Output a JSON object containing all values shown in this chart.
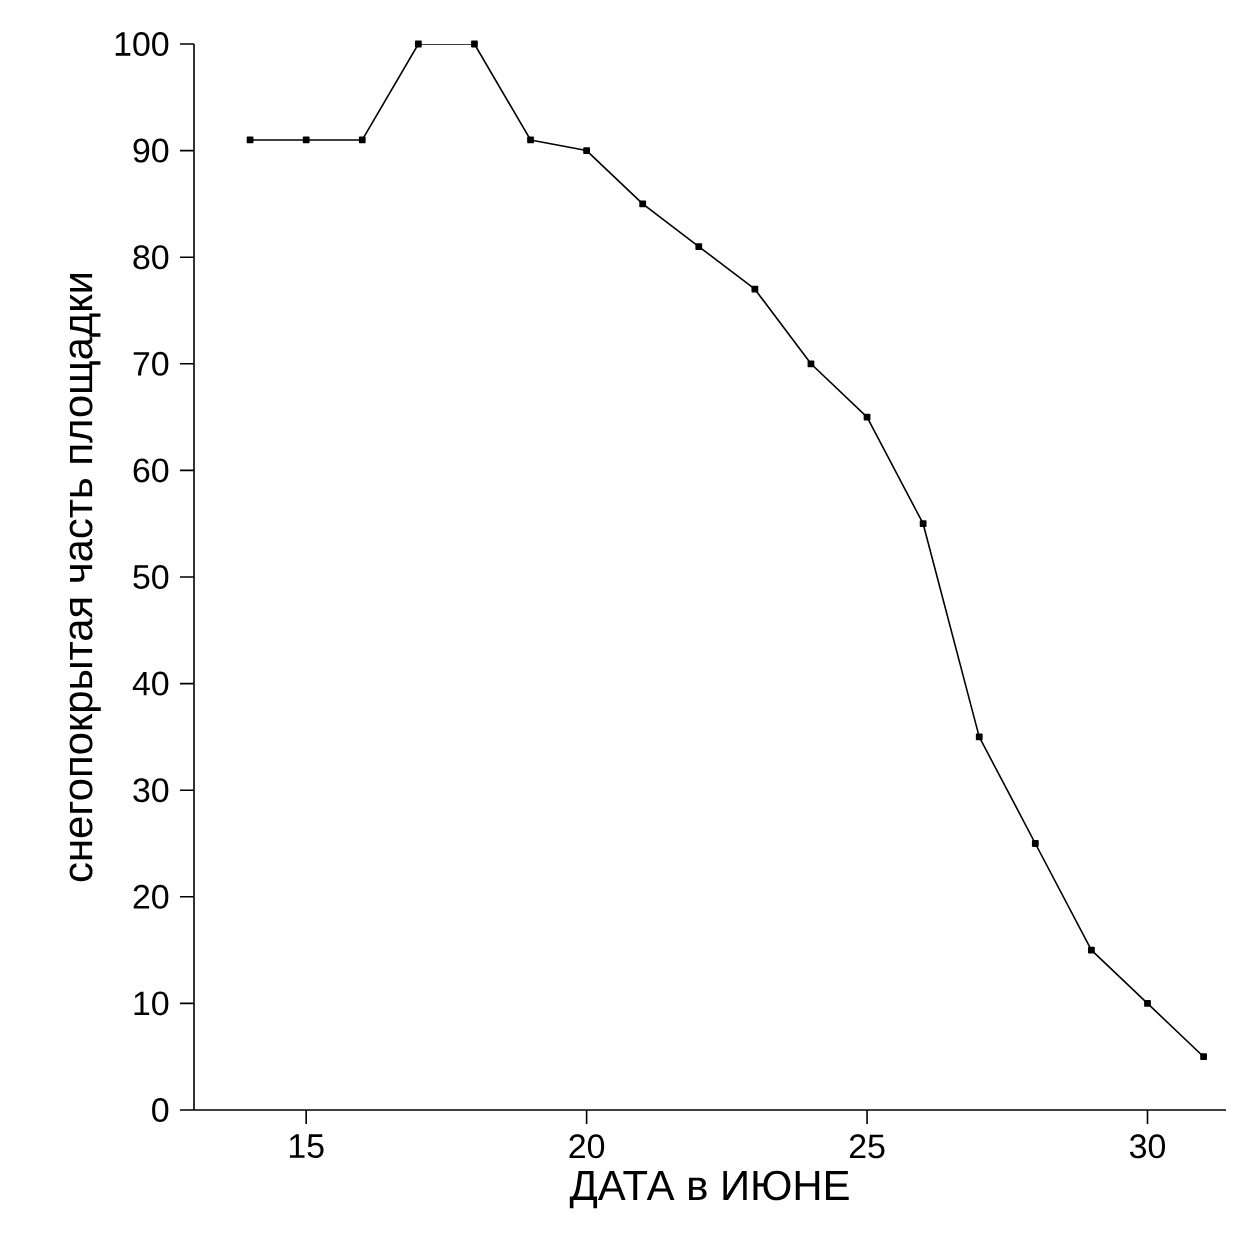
{
  "chart_data": {
    "type": "line",
    "xlabel": "ДАТА в ИЮНЕ",
    "ylabel": "снегопокрытая часть площадки",
    "x": [
      14,
      15,
      16,
      17,
      18,
      19,
      20,
      21,
      22,
      23,
      24,
      25,
      26,
      27,
      28,
      29,
      30,
      31
    ],
    "series": [
      {
        "color": "#000000",
        "values": [
          91,
          91,
          91,
          100,
          100,
          91,
          90,
          85,
          81,
          77,
          70,
          65,
          55,
          35,
          25,
          15,
          10,
          5
        ]
      }
    ],
    "xlim": [
      13,
      31.4
    ],
    "ylim": [
      0,
      100
    ],
    "xticks": [
      15,
      20,
      25,
      30
    ],
    "yticks": [
      0,
      10,
      20,
      30,
      40,
      50,
      60,
      70,
      80,
      90,
      100
    ],
    "marker": "square",
    "line_style": "solid"
  }
}
